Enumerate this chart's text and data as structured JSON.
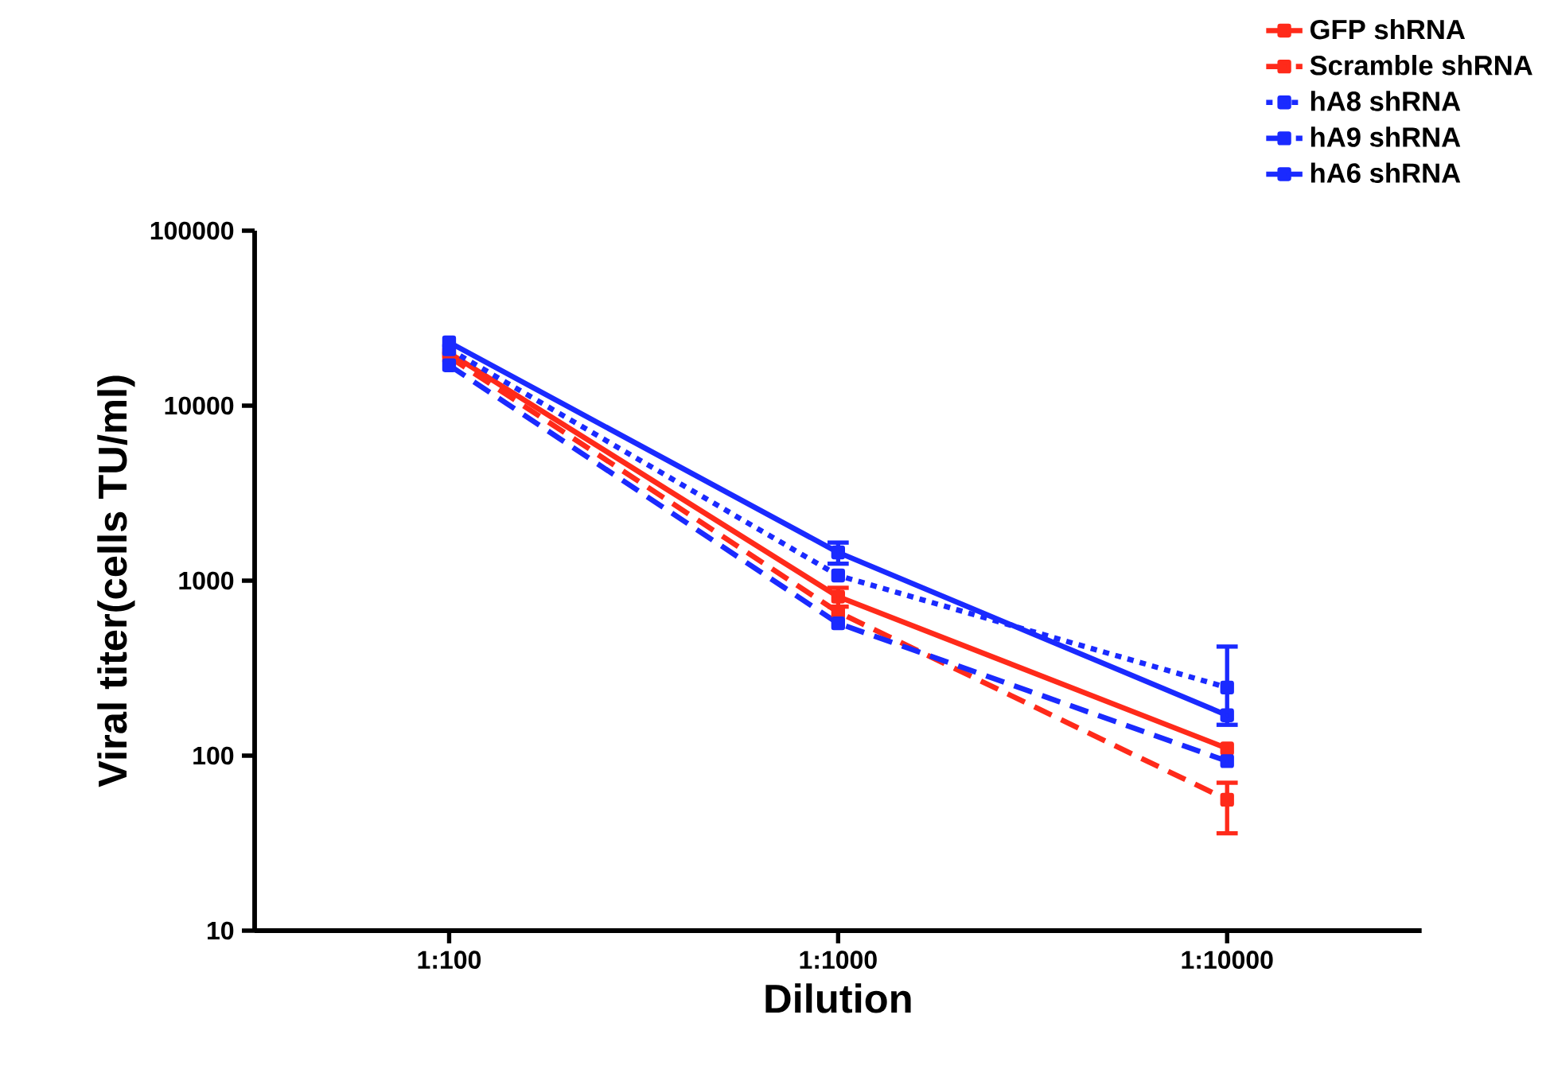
{
  "chart_data": {
    "type": "line",
    "xlabel": "Dilution",
    "ylabel": "Viral titer(cells TU/ml)",
    "categories": [
      "1:100",
      "1:1000",
      "1:10000"
    ],
    "log": "y",
    "ylim": [
      10,
      100000
    ],
    "yticks": [
      10,
      100,
      1000,
      10000,
      100000
    ],
    "legend": "top right",
    "marker": "square",
    "grid": false,
    "series": [
      {
        "name": "GFP shRNA",
        "color": "#ff2a1a",
        "line_style": "solid",
        "values": [
          20000,
          810,
          110
        ],
        "errors": [
          null,
          100,
          null
        ]
      },
      {
        "name": "Scramble shRNA",
        "color": "#ff2a1a",
        "line_style": "dashed",
        "values": [
          19000,
          660,
          56
        ],
        "errors": [
          null,
          null,
          [
            36,
            70
          ]
        ]
      },
      {
        "name": "hA8 shRNA",
        "color": "#1a2aff",
        "line_style": "dotted",
        "values": [
          21000,
          1070,
          245
        ],
        "errors": [
          null,
          null,
          [
            150,
            420
          ]
        ]
      },
      {
        "name": "hA9 shRNA",
        "color": "#1a2aff",
        "line_style": "dashed",
        "values": [
          17000,
          570,
          93
        ],
        "errors": [
          null,
          null,
          null
        ]
      },
      {
        "name": "hA6 shRNA",
        "color": "#1a2aff",
        "line_style": "solid",
        "values": [
          23000,
          1450,
          170
        ],
        "errors": [
          null,
          200,
          null
        ]
      }
    ]
  }
}
